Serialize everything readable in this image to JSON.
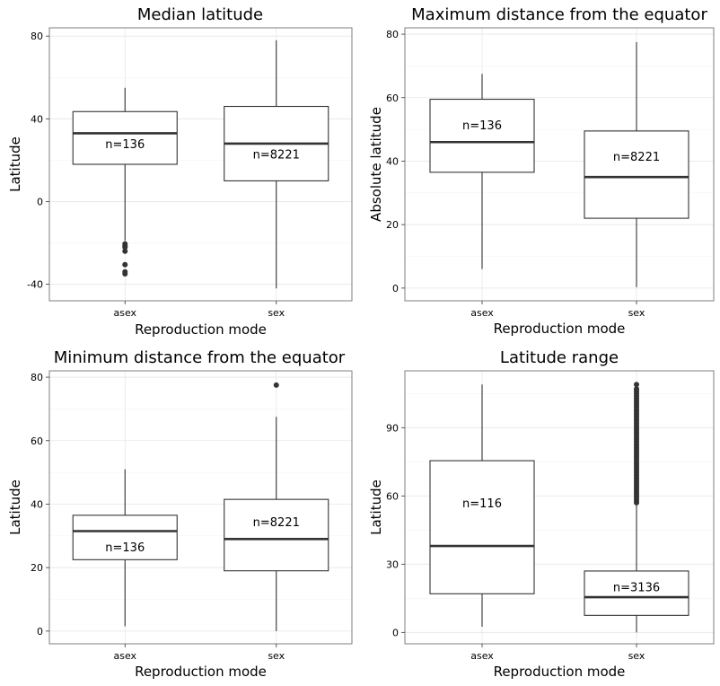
{
  "chart_data": [
    {
      "type": "box",
      "title": "Median latitude",
      "xlabel": "Reproduction mode",
      "ylabel": "Latitude",
      "categories": [
        "asex",
        "sex"
      ],
      "ylim": [
        -48,
        84
      ],
      "yticks": [
        -40,
        0,
        40,
        80
      ],
      "boxes": [
        {
          "category": "asex",
          "lower_whisker": -19,
          "q1": 18,
          "median": 33,
          "q3": 43.5,
          "upper_whisker": 55,
          "outliers": [
            -20.5,
            -21.5,
            -22,
            -24,
            -30.5,
            -34,
            -35
          ],
          "n_label": "n=136",
          "n_label_y": 28
        },
        {
          "category": "sex",
          "lower_whisker": -42,
          "q1": 10,
          "median": 28,
          "q3": 46,
          "upper_whisker": 78,
          "outliers": [],
          "n_label": "n=8221",
          "n_label_y": 23
        }
      ]
    },
    {
      "type": "box",
      "title": "Maximum distance from the equator",
      "xlabel": "Reproduction mode",
      "ylabel": "Absolute latitude",
      "categories": [
        "asex",
        "sex"
      ],
      "ylim": [
        -4,
        82
      ],
      "yticks": [
        0,
        20,
        40,
        60,
        80
      ],
      "boxes": [
        {
          "category": "asex",
          "lower_whisker": 6,
          "q1": 36.5,
          "median": 46,
          "q3": 59.5,
          "upper_whisker": 67.5,
          "outliers": [],
          "n_label": "n=136",
          "n_label_y": 51.5
        },
        {
          "category": "sex",
          "lower_whisker": 0.3,
          "q1": 22,
          "median": 35,
          "q3": 49.5,
          "upper_whisker": 77.5,
          "outliers": [],
          "n_label": "n=8221",
          "n_label_y": 41.5
        }
      ]
    },
    {
      "type": "box",
      "title": "Minimum distance from the equator",
      "xlabel": "Reproduction mode",
      "ylabel": "Latitude",
      "categories": [
        "asex",
        "sex"
      ],
      "ylim": [
        -4,
        82
      ],
      "yticks": [
        0,
        20,
        40,
        60,
        80
      ],
      "boxes": [
        {
          "category": "asex",
          "lower_whisker": 1.5,
          "q1": 22.5,
          "median": 31.5,
          "q3": 36.5,
          "upper_whisker": 51,
          "outliers": [],
          "n_label": "n=136",
          "n_label_y": 26.5
        },
        {
          "category": "sex",
          "lower_whisker": 0,
          "q1": 19,
          "median": 29,
          "q3": 41.5,
          "upper_whisker": 67.5,
          "outliers": [
            77.5
          ],
          "n_label": "n=8221",
          "n_label_y": 34.5
        }
      ]
    },
    {
      "type": "box",
      "title": "Latitude range",
      "xlabel": "Reproduction mode",
      "ylabel": "Latitude",
      "categories": [
        "asex",
        "sex"
      ],
      "ylim": [
        -5,
        115
      ],
      "yticks": [
        0,
        30,
        60,
        90
      ],
      "boxes": [
        {
          "category": "asex",
          "lower_whisker": 2.5,
          "q1": 17,
          "median": 38,
          "q3": 75.5,
          "upper_whisker": 109,
          "outliers": [],
          "n_label": "n=116",
          "n_label_y": 57
        },
        {
          "category": "sex",
          "lower_whisker": 0,
          "q1": 7.5,
          "median": 15.5,
          "q3": 27,
          "upper_whisker": 56,
          "outliers": [
            57,
            58,
            59,
            60,
            61,
            62,
            63,
            64,
            65,
            66,
            67,
            68,
            69,
            70,
            71,
            72,
            73,
            74,
            75,
            76,
            77,
            78,
            79,
            80,
            81,
            82,
            83,
            84,
            85,
            86,
            87,
            88,
            89,
            90,
            91,
            92,
            93,
            94,
            95,
            96,
            97,
            98,
            99,
            100,
            101,
            102,
            103,
            104,
            105,
            106,
            107,
            109
          ],
          "n_label": "n=3136",
          "n_label_y": 20
        }
      ]
    }
  ]
}
